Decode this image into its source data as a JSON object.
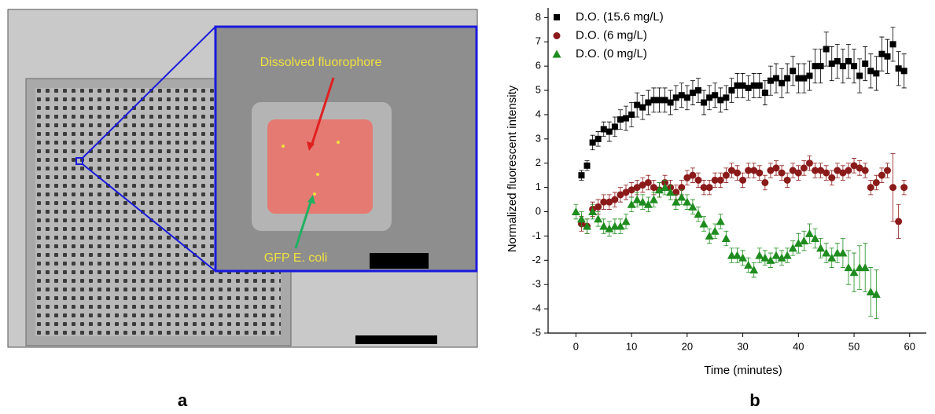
{
  "figure": {
    "panel_a": {
      "label": "a",
      "annotations": [
        "Dissolved fluorophore",
        "GFP E. coli"
      ]
    },
    "panel_b": {
      "label": "b"
    }
  },
  "chart_data": {
    "type": "scatter",
    "x_label": "Time (minutes)",
    "y_label": "Normalized fluorescent intensity",
    "xlim": [
      -5,
      63
    ],
    "ylim": [
      -5,
      8.4
    ],
    "xticks": [
      0,
      10,
      20,
      30,
      40,
      50,
      60
    ],
    "yticks": [
      -5,
      -4,
      -3,
      -2,
      -1,
      0,
      1,
      2,
      3,
      4,
      5,
      6,
      7,
      8
    ],
    "legend": "upper-left",
    "series": [
      {
        "name": "D.O. (15.6 mg/L)",
        "color": "#000000",
        "marker": "square",
        "x": [
          1,
          2,
          3,
          4,
          5,
          6,
          7,
          8,
          9,
          10,
          11,
          12,
          13,
          14,
          15,
          16,
          17,
          18,
          19,
          20,
          21,
          22,
          23,
          24,
          25,
          26,
          27,
          28,
          29,
          30,
          31,
          32,
          33,
          34,
          35,
          36,
          37,
          38,
          39,
          40,
          41,
          42,
          43,
          44,
          45,
          46,
          47,
          48,
          49,
          50,
          51,
          52,
          53,
          54,
          55,
          56,
          57,
          58,
          59
        ],
        "values": [
          1.5,
          1.9,
          2.85,
          3.0,
          3.4,
          3.3,
          3.5,
          3.8,
          3.85,
          4.0,
          4.4,
          4.3,
          4.5,
          4.6,
          4.6,
          4.6,
          4.5,
          4.7,
          4.8,
          4.7,
          4.9,
          5.0,
          4.5,
          4.7,
          4.8,
          4.6,
          4.7,
          5.0,
          5.2,
          5.2,
          5.1,
          5.2,
          5.2,
          4.9,
          5.4,
          5.5,
          5.3,
          5.5,
          5.8,
          5.5,
          5.5,
          5.6,
          6.0,
          6.0,
          6.7,
          6.1,
          6.2,
          6.0,
          6.2,
          6.0,
          5.6,
          6.1,
          5.8,
          5.7,
          6.5,
          6.4,
          6.9,
          5.9,
          5.8
        ],
        "errors": [
          0.2,
          0.2,
          0.3,
          0.3,
          0.3,
          0.4,
          0.4,
          0.4,
          0.5,
          0.5,
          0.5,
          0.5,
          0.5,
          0.5,
          0.5,
          0.5,
          0.5,
          0.5,
          0.5,
          0.5,
          0.5,
          0.5,
          0.5,
          0.5,
          0.5,
          0.5,
          0.5,
          0.5,
          0.5,
          0.5,
          0.5,
          0.5,
          0.5,
          0.5,
          0.6,
          0.6,
          0.6,
          0.6,
          0.6,
          0.6,
          0.6,
          0.6,
          0.7,
          0.7,
          0.7,
          0.7,
          0.7,
          0.7,
          0.7,
          0.7,
          0.7,
          0.7,
          0.7,
          0.7,
          0.7,
          0.7,
          0.7,
          0.7,
          0.7
        ]
      },
      {
        "name": "D.O. (6 mg/L)",
        "color": "#8b1a1a",
        "marker": "circle",
        "x": [
          1,
          2,
          3,
          4,
          5,
          6,
          7,
          8,
          9,
          10,
          11,
          12,
          13,
          14,
          15,
          16,
          17,
          18,
          19,
          20,
          21,
          22,
          23,
          24,
          25,
          26,
          27,
          28,
          29,
          30,
          31,
          32,
          33,
          34,
          35,
          36,
          37,
          38,
          39,
          40,
          41,
          42,
          43,
          44,
          45,
          46,
          47,
          48,
          49,
          50,
          51,
          52,
          53,
          54,
          55,
          56,
          57,
          58,
          59
        ],
        "values": [
          -0.5,
          -0.6,
          0.1,
          0.2,
          0.4,
          0.4,
          0.5,
          0.7,
          0.8,
          0.9,
          1.0,
          1.1,
          1.2,
          1.0,
          0.9,
          1.2,
          1.0,
          0.8,
          1.0,
          1.4,
          1.5,
          1.3,
          1.0,
          1.0,
          1.3,
          1.3,
          1.5,
          1.7,
          1.6,
          1.3,
          1.7,
          1.7,
          1.6,
          1.2,
          1.7,
          1.8,
          1.6,
          1.3,
          1.7,
          1.6,
          1.8,
          2.0,
          1.7,
          1.7,
          1.6,
          1.4,
          1.7,
          1.6,
          1.7,
          1.9,
          1.8,
          1.7,
          1.0,
          1.2,
          1.5,
          1.7,
          1.0,
          -0.4,
          1.0
        ],
        "errors": [
          0.3,
          0.3,
          0.3,
          0.3,
          0.3,
          0.3,
          0.3,
          0.3,
          0.3,
          0.3,
          0.3,
          0.3,
          0.3,
          0.3,
          0.3,
          0.3,
          0.3,
          0.3,
          0.3,
          0.3,
          0.3,
          0.3,
          0.3,
          0.3,
          0.3,
          0.3,
          0.3,
          0.3,
          0.3,
          0.3,
          0.3,
          0.3,
          0.3,
          0.3,
          0.3,
          0.3,
          0.3,
          0.3,
          0.3,
          0.3,
          0.3,
          0.3,
          0.3,
          0.3,
          0.3,
          0.3,
          0.3,
          0.3,
          0.3,
          0.3,
          0.3,
          0.3,
          0.3,
          0.3,
          0.3,
          0.3,
          1.4,
          0.7,
          0.3
        ]
      },
      {
        "name": "D.O. (0 mg/L)",
        "color": "#1e8c1e",
        "marker": "triangle",
        "x": [
          0,
          1,
          2,
          3,
          4,
          5,
          6,
          7,
          8,
          9,
          10,
          11,
          12,
          13,
          14,
          15,
          16,
          17,
          18,
          19,
          20,
          21,
          22,
          23,
          24,
          25,
          26,
          27,
          28,
          29,
          30,
          31,
          32,
          33,
          34,
          35,
          36,
          37,
          38,
          39,
          40,
          41,
          42,
          43,
          44,
          45,
          46,
          47,
          48,
          49,
          50,
          51,
          52,
          53,
          54
        ],
        "values": [
          0.0,
          -0.3,
          -0.6,
          0.0,
          -0.3,
          -0.6,
          -0.7,
          -0.6,
          -0.6,
          -0.4,
          0.3,
          0.5,
          0.4,
          0.3,
          0.5,
          0.9,
          1.0,
          0.8,
          0.4,
          0.6,
          0.4,
          0.2,
          -0.1,
          -0.5,
          -1.0,
          -0.8,
          -0.4,
          -1.1,
          -1.8,
          -1.8,
          -1.9,
          -2.2,
          -2.4,
          -1.8,
          -1.9,
          -2.0,
          -1.8,
          -1.9,
          -1.8,
          -1.5,
          -1.3,
          -1.2,
          -0.9,
          -1.1,
          -1.5,
          -1.7,
          -1.9,
          -1.7,
          -1.7,
          -2.3,
          -2.5,
          -2.3,
          -2.3,
          -3.3,
          -3.4
        ],
        "errors": [
          0.3,
          0.3,
          0.3,
          0.3,
          0.3,
          0.3,
          0.3,
          0.3,
          0.3,
          0.3,
          0.3,
          0.3,
          0.3,
          0.3,
          0.3,
          0.3,
          0.3,
          0.3,
          0.3,
          0.3,
          0.3,
          0.3,
          0.3,
          0.3,
          0.3,
          0.3,
          0.3,
          0.3,
          0.3,
          0.3,
          0.3,
          0.3,
          0.3,
          0.3,
          0.3,
          0.3,
          0.3,
          0.3,
          0.3,
          0.3,
          0.4,
          0.4,
          0.4,
          0.4,
          0.4,
          0.4,
          0.4,
          0.4,
          0.6,
          0.7,
          0.8,
          0.9,
          1.0,
          1.0,
          1.0
        ]
      }
    ]
  }
}
